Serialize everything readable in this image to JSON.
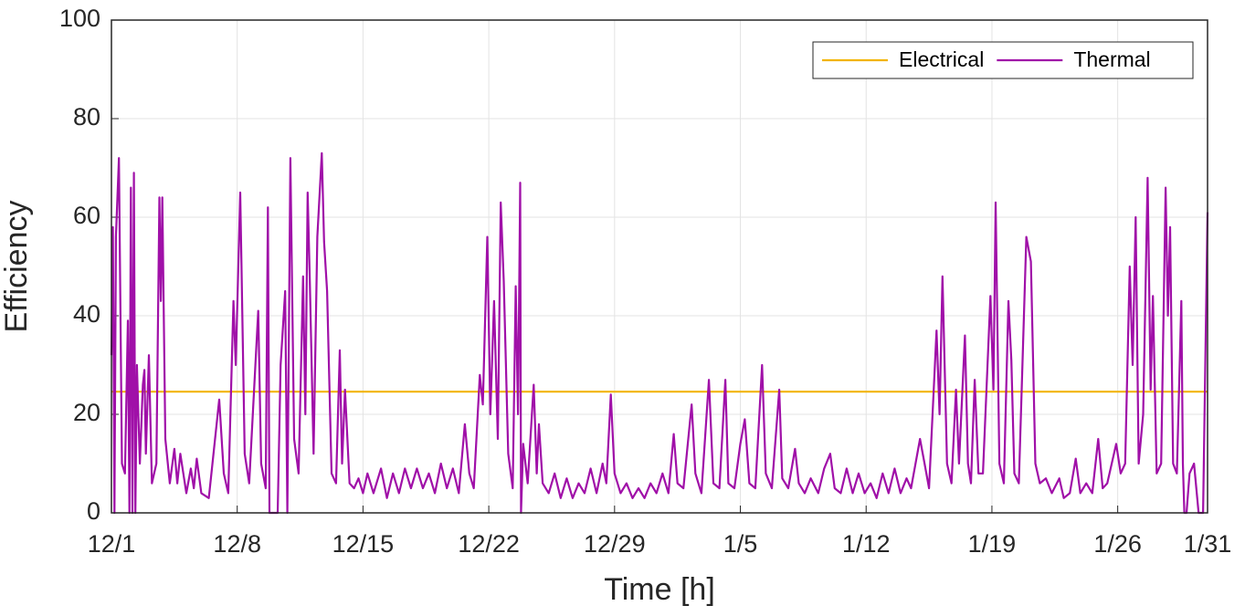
{
  "chart_data": {
    "type": "line",
    "xlabel": "Time [h]",
    "ylabel": "Efficiency",
    "xlim": [
      0,
      1464
    ],
    "ylim": [
      0,
      100
    ],
    "xticks": [
      {
        "value": 0,
        "label": "12/1"
      },
      {
        "value": 168,
        "label": "12/8"
      },
      {
        "value": 336,
        "label": "12/15"
      },
      {
        "value": 504,
        "label": "12/22"
      },
      {
        "value": 672,
        "label": "12/29"
      },
      {
        "value": 840,
        "label": "1/5"
      },
      {
        "value": 1008,
        "label": "1/12"
      },
      {
        "value": 1176,
        "label": "1/19"
      },
      {
        "value": 1344,
        "label": "1/26"
      },
      {
        "value": 1464,
        "label": "1/31"
      }
    ],
    "yticks": [
      0,
      20,
      40,
      60,
      80,
      100
    ],
    "grid": true,
    "legend": "upper right",
    "series": [
      {
        "name": "Electrical",
        "color": "#f2b400",
        "x": [
          0,
          1464
        ],
        "values": [
          24.6,
          24.6
        ]
      },
      {
        "name": "Thermal",
        "color": "#a010a8",
        "x": [
          0,
          2,
          4,
          6,
          10,
          14,
          18,
          22,
          24,
          26,
          28,
          30,
          32,
          34,
          38,
          42,
          44,
          46,
          50,
          54,
          60,
          64,
          66,
          68,
          72,
          78,
          84,
          88,
          92,
          100,
          106,
          110,
          114,
          120,
          130,
          144,
          150,
          156,
          163,
          166,
          172,
          178,
          184,
          196,
          200,
          206,
          209,
          211,
          222,
          226,
          232,
          235,
          239,
          244,
          250,
          256,
          259,
          262,
          265,
          270,
          275,
          281,
          284,
          288,
          294,
          300,
          305,
          308,
          312,
          318,
          324,
          330,
          336,
          342,
          350,
          360,
          368,
          376,
          384,
          392,
          400,
          408,
          416,
          424,
          432,
          440,
          448,
          456,
          464,
          472,
          478,
          484,
          492,
          496,
          502,
          506,
          511,
          516,
          520,
          524,
          530,
          536,
          540,
          543,
          546,
          547,
          550,
          556,
          564,
          568,
          571,
          576,
          584,
          592,
          600,
          608,
          616,
          624,
          632,
          640,
          648,
          656,
          661,
          667,
          672,
          680,
          688,
          696,
          704,
          712,
          720,
          728,
          736,
          744,
          751,
          756,
          764,
          775,
          780,
          788,
          798,
          804,
          812,
          820,
          824,
          832,
          840,
          846,
          852,
          860,
          869,
          874,
          882,
          892,
          896,
          904,
          913,
          918,
          926,
          934,
          944,
          952,
          960,
          966,
          974,
          982,
          990,
          998,
          1006,
          1014,
          1022,
          1030,
          1038,
          1046,
          1054,
          1062,
          1068,
          1080,
          1086,
          1092,
          1102,
          1106,
          1110,
          1116,
          1122,
          1128,
          1132,
          1140,
          1144,
          1148,
          1153,
          1158,
          1164,
          1174,
          1178,
          1181,
          1186,
          1192,
          1198,
          1202,
          1206,
          1212,
          1222,
          1228,
          1234,
          1240,
          1248,
          1256,
          1266,
          1272,
          1280,
          1288,
          1294,
          1302,
          1310,
          1318,
          1324,
          1330,
          1342,
          1348,
          1354,
          1360,
          1364,
          1368,
          1372,
          1378,
          1384,
          1388,
          1391,
          1396,
          1402,
          1408,
          1411,
          1414,
          1418,
          1423,
          1429,
          1431,
          1433,
          1436,
          1440,
          1446,
          1452,
          1458,
          1464
        ],
        "values": [
          32,
          58,
          0,
          56,
          72,
          10,
          8,
          39,
          0,
          66,
          0,
          69,
          0,
          30,
          10,
          26,
          29,
          12,
          32,
          6,
          10,
          64,
          43,
          64,
          15,
          6,
          13,
          6,
          12,
          4,
          9,
          5,
          11,
          4,
          3,
          23,
          8,
          4,
          43,
          30,
          65,
          12,
          6,
          41,
          10,
          5,
          62,
          0,
          0,
          30,
          45,
          0,
          72,
          15,
          8,
          48,
          20,
          65,
          47,
          12,
          56,
          73,
          55,
          45,
          8,
          6,
          33,
          10,
          25,
          6,
          5,
          7,
          4,
          8,
          4,
          9,
          3,
          8,
          4,
          9,
          5,
          9,
          5,
          8,
          4,
          10,
          5,
          9,
          4,
          18,
          8,
          5,
          28,
          22,
          56,
          20,
          43,
          15,
          63,
          47,
          12,
          5,
          46,
          20,
          67,
          0,
          14,
          6,
          26,
          8,
          18,
          6,
          4,
          8,
          3,
          7,
          3,
          6,
          4,
          9,
          4,
          10,
          6,
          24,
          8,
          4,
          6,
          3,
          5,
          3,
          6,
          4,
          8,
          4,
          16,
          6,
          5,
          22,
          8,
          4,
          27,
          6,
          5,
          27,
          6,
          5,
          14,
          19,
          6,
          5,
          30,
          8,
          5,
          25,
          7,
          5,
          13,
          6,
          4,
          7,
          4,
          9,
          12,
          5,
          4,
          9,
          4,
          8,
          4,
          6,
          3,
          8,
          4,
          9,
          4,
          7,
          5,
          15,
          10,
          5,
          37,
          20,
          48,
          10,
          6,
          25,
          10,
          36,
          10,
          6,
          27,
          8,
          8,
          44,
          25,
          63,
          10,
          6,
          43,
          31,
          8,
          6,
          56,
          51,
          10,
          6,
          7,
          4,
          7,
          3,
          4,
          11,
          4,
          6,
          4,
          15,
          5,
          6,
          14,
          8,
          10,
          50,
          30,
          60,
          10,
          20,
          68,
          25,
          44,
          8,
          10,
          66,
          40,
          58,
          10,
          8,
          43,
          10,
          0,
          0,
          8,
          10,
          0,
          0,
          61
        ]
      }
    ]
  }
}
